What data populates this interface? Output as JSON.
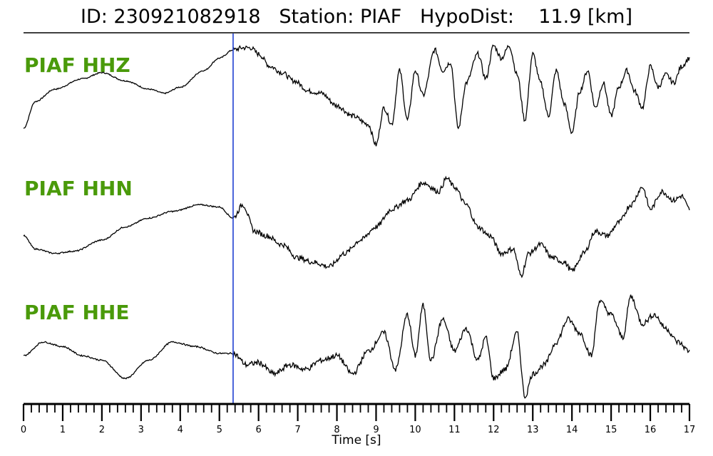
{
  "header": {
    "title": "ID: 230921082918   Station: PIAF   HypoDist:    11.9 [km]"
  },
  "colors": {
    "trace": "#000000",
    "label": "#4a9a0a",
    "pick_line": "#1f3fd1",
    "axis": "#000000"
  },
  "chart_data": {
    "type": "line",
    "title": "ID: 230921082918   Station: PIAF   HypoDist:    11.9 [km]",
    "xlabel": "Time [s]",
    "ylabel": "",
    "xlim": [
      0,
      17
    ],
    "x_ticks": [
      "0",
      "1",
      "2",
      "3",
      "4",
      "5",
      "6",
      "7",
      "8",
      "9",
      "10",
      "11",
      "12",
      "13",
      "14",
      "15",
      "16",
      "17"
    ],
    "minor_tick_step": 0.2,
    "pick_time": 5.35,
    "grid": false,
    "legend": "none",
    "series": [
      {
        "name": "PIAF HHZ",
        "points": [
          [
            0,
            -0.9
          ],
          [
            0.3,
            -0.25
          ],
          [
            0.8,
            0.05
          ],
          [
            1.5,
            0.3
          ],
          [
            2.0,
            0.45
          ],
          [
            2.6,
            0.25
          ],
          [
            3.2,
            0.05
          ],
          [
            3.6,
            -0.05
          ],
          [
            4.0,
            0.1
          ],
          [
            4.6,
            0.5
          ],
          [
            5.0,
            0.8
          ],
          [
            5.35,
            1.0
          ],
          [
            5.6,
            1.05
          ],
          [
            5.8,
            1.05
          ],
          [
            6.0,
            0.9
          ],
          [
            6.3,
            0.6
          ],
          [
            6.6,
            0.45
          ],
          [
            6.9,
            0.25
          ],
          [
            7.3,
            0.0
          ],
          [
            7.6,
            -0.05
          ],
          [
            8.0,
            -0.35
          ],
          [
            8.4,
            -0.6
          ],
          [
            8.8,
            -0.8
          ],
          [
            9.0,
            -1.3
          ],
          [
            9.2,
            -0.4
          ],
          [
            9.4,
            -0.8
          ],
          [
            9.6,
            0.5
          ],
          [
            9.8,
            -0.7
          ],
          [
            10.0,
            0.5
          ],
          [
            10.2,
            -0.1
          ],
          [
            10.5,
            1.0
          ],
          [
            10.7,
            0.5
          ],
          [
            10.9,
            0.7
          ],
          [
            11.1,
            -0.9
          ],
          [
            11.3,
            0.2
          ],
          [
            11.6,
            0.9
          ],
          [
            11.8,
            0.3
          ],
          [
            12.0,
            1.1
          ],
          [
            12.2,
            0.8
          ],
          [
            12.4,
            1.1
          ],
          [
            12.6,
            0.4
          ],
          [
            12.8,
            -0.7
          ],
          [
            13.0,
            0.9
          ],
          [
            13.2,
            0.2
          ],
          [
            13.4,
            -0.6
          ],
          [
            13.6,
            0.5
          ],
          [
            13.8,
            -0.3
          ],
          [
            14.0,
            -1.0
          ],
          [
            14.2,
            0.0
          ],
          [
            14.4,
            0.5
          ],
          [
            14.6,
            -0.4
          ],
          [
            14.8,
            0.2
          ],
          [
            15.0,
            -0.6
          ],
          [
            15.2,
            0.1
          ],
          [
            15.4,
            0.5
          ],
          [
            15.6,
            0.0
          ],
          [
            15.8,
            -0.4
          ],
          [
            16.0,
            0.6
          ],
          [
            16.2,
            0.1
          ],
          [
            16.4,
            0.4
          ],
          [
            16.6,
            0.2
          ],
          [
            16.8,
            0.6
          ],
          [
            17.0,
            0.8
          ]
        ]
      },
      {
        "name": "PIAF HHN",
        "points": [
          [
            0,
            -0.4
          ],
          [
            0.3,
            -0.7
          ],
          [
            0.8,
            -0.8
          ],
          [
            1.3,
            -0.75
          ],
          [
            2.0,
            -0.5
          ],
          [
            2.6,
            -0.2
          ],
          [
            3.2,
            0.0
          ],
          [
            3.8,
            0.15
          ],
          [
            4.5,
            0.3
          ],
          [
            5.0,
            0.25
          ],
          [
            5.35,
            0.0
          ],
          [
            5.6,
            0.3
          ],
          [
            5.9,
            -0.3
          ],
          [
            6.2,
            -0.4
          ],
          [
            6.6,
            -0.6
          ],
          [
            7.0,
            -0.9
          ],
          [
            7.4,
            -1.0
          ],
          [
            7.8,
            -1.1
          ],
          [
            8.2,
            -0.8
          ],
          [
            8.6,
            -0.5
          ],
          [
            9.0,
            -0.2
          ],
          [
            9.4,
            0.2
          ],
          [
            9.8,
            0.4
          ],
          [
            10.2,
            0.8
          ],
          [
            10.6,
            0.6
          ],
          [
            10.8,
            0.9
          ],
          [
            11.0,
            0.7
          ],
          [
            11.3,
            0.3
          ],
          [
            11.6,
            -0.2
          ],
          [
            11.9,
            -0.4
          ],
          [
            12.2,
            -0.8
          ],
          [
            12.5,
            -0.7
          ],
          [
            12.7,
            -1.3
          ],
          [
            12.9,
            -0.8
          ],
          [
            13.2,
            -0.6
          ],
          [
            13.5,
            -0.9
          ],
          [
            13.8,
            -1.0
          ],
          [
            14.0,
            -1.2
          ],
          [
            14.3,
            -0.8
          ],
          [
            14.6,
            -0.3
          ],
          [
            14.9,
            -0.4
          ],
          [
            15.2,
            -0.1
          ],
          [
            15.5,
            0.3
          ],
          [
            15.8,
            0.7
          ],
          [
            16.0,
            0.2
          ],
          [
            16.3,
            0.6
          ],
          [
            16.6,
            0.4
          ],
          [
            16.8,
            0.5
          ],
          [
            17.0,
            0.2
          ]
        ]
      },
      {
        "name": "PIAF HHE",
        "points": [
          [
            0,
            -0.3
          ],
          [
            0.5,
            0.0
          ],
          [
            1.0,
            -0.1
          ],
          [
            1.5,
            -0.3
          ],
          [
            2.0,
            -0.4
          ],
          [
            2.6,
            -0.8
          ],
          [
            3.2,
            -0.4
          ],
          [
            3.8,
            0.0
          ],
          [
            4.4,
            -0.1
          ],
          [
            5.0,
            -0.25
          ],
          [
            5.35,
            -0.25
          ],
          [
            5.7,
            -0.5
          ],
          [
            6.0,
            -0.45
          ],
          [
            6.4,
            -0.7
          ],
          [
            6.8,
            -0.5
          ],
          [
            7.2,
            -0.6
          ],
          [
            7.6,
            -0.4
          ],
          [
            8.0,
            -0.3
          ],
          [
            8.4,
            -0.7
          ],
          [
            8.8,
            -0.2
          ],
          [
            9.2,
            0.2
          ],
          [
            9.5,
            -0.6
          ],
          [
            9.8,
            0.6
          ],
          [
            10.0,
            -0.3
          ],
          [
            10.2,
            0.8
          ],
          [
            10.4,
            -0.4
          ],
          [
            10.7,
            0.5
          ],
          [
            11.0,
            -0.2
          ],
          [
            11.3,
            0.3
          ],
          [
            11.6,
            -0.4
          ],
          [
            11.8,
            0.1
          ],
          [
            12.0,
            -0.8
          ],
          [
            12.3,
            -0.6
          ],
          [
            12.6,
            0.2
          ],
          [
            12.8,
            -1.2
          ],
          [
            13.0,
            -0.7
          ],
          [
            13.3,
            -0.5
          ],
          [
            13.6,
            0.0
          ],
          [
            13.9,
            0.5
          ],
          [
            14.2,
            0.2
          ],
          [
            14.5,
            -0.3
          ],
          [
            14.7,
            0.9
          ],
          [
            15.0,
            0.6
          ],
          [
            15.3,
            0.1
          ],
          [
            15.5,
            1.0
          ],
          [
            15.8,
            0.4
          ],
          [
            16.1,
            0.6
          ],
          [
            16.4,
            0.3
          ],
          [
            16.7,
            0.0
          ],
          [
            17.0,
            -0.2
          ]
        ]
      }
    ]
  }
}
